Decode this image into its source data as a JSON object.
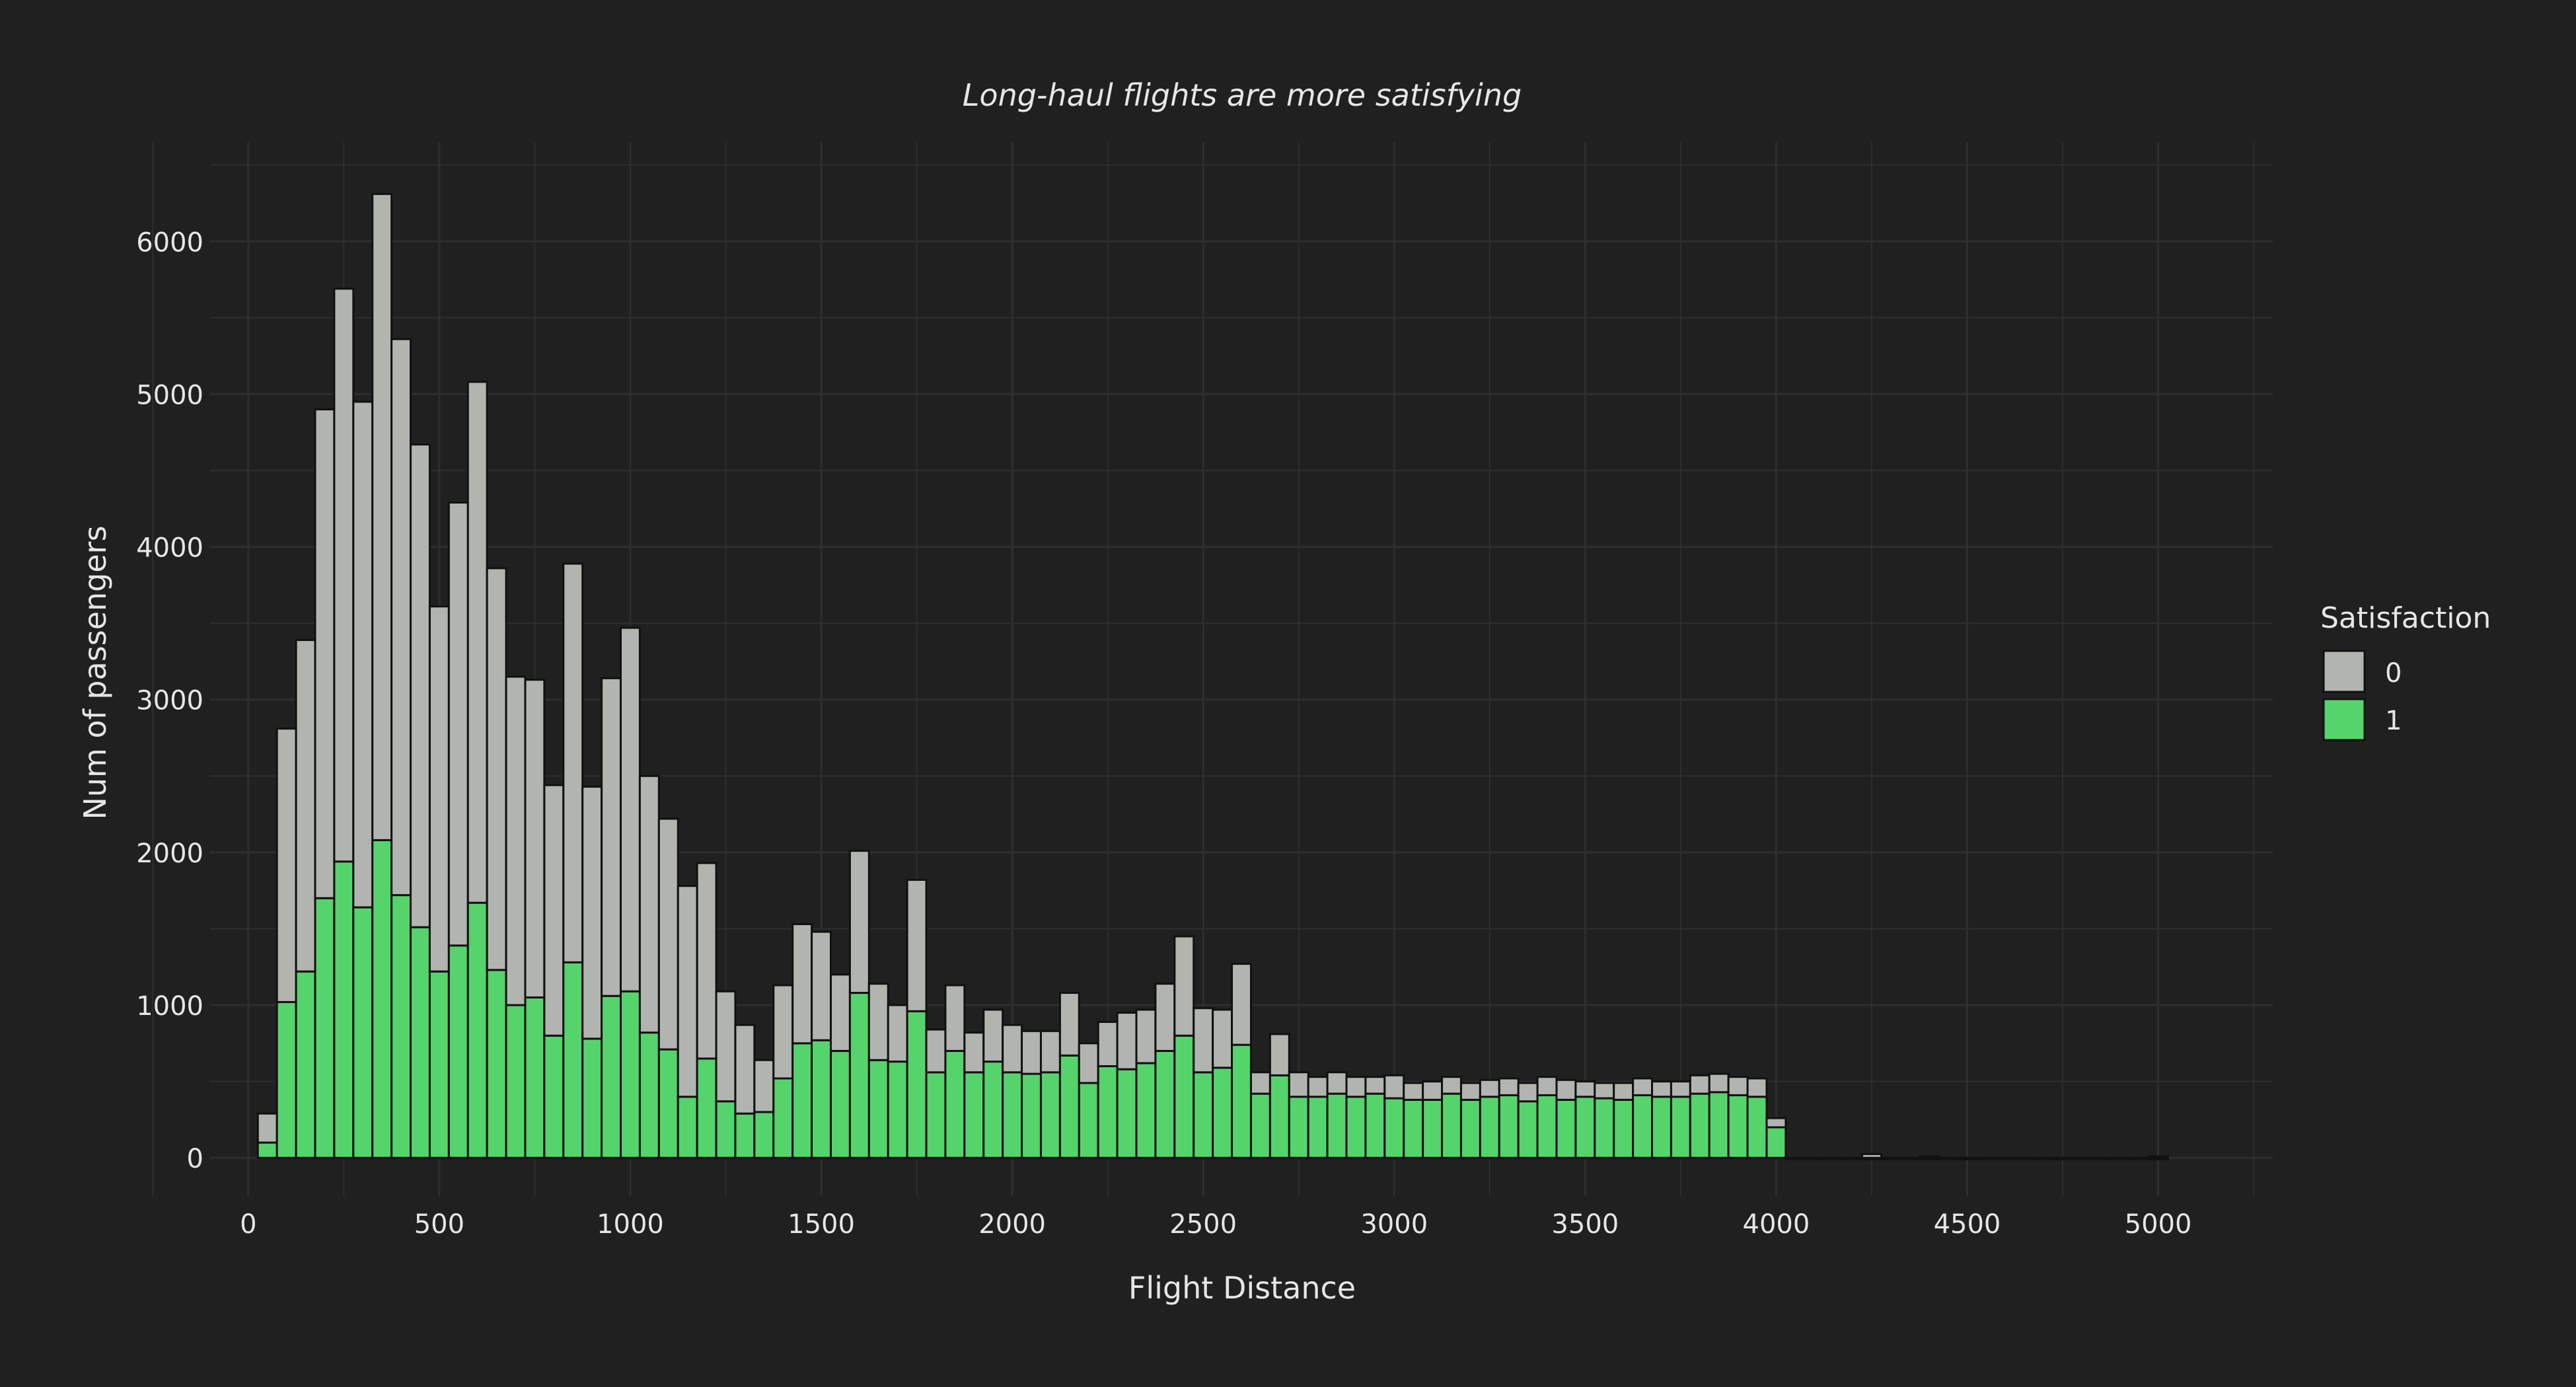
{
  "chart_data": {
    "type": "bar",
    "stacked": true,
    "title": "Long-haul flights are more satisfying",
    "xlabel": "Flight Distance",
    "ylabel": "Num of passengers",
    "xlim": [
      -100,
      5300
    ],
    "ylim": [
      -250,
      6650
    ],
    "x_ticks": [
      0,
      500,
      1000,
      1500,
      2000,
      2500,
      3000,
      3500,
      4000,
      4500,
      5000
    ],
    "y_ticks": [
      0,
      1000,
      2000,
      3000,
      4000,
      5000,
      6000
    ],
    "bin_width": 50,
    "grid": true,
    "legend": {
      "title": "Satisfaction",
      "placement": "right"
    },
    "colors": {
      "background": "#202020",
      "0": "#b2b5af",
      "1": "#55d46b",
      "outline": "#111111",
      "text": "#e6e6e6",
      "grid": "#2e2e2e"
    },
    "x": [
      50,
      100,
      150,
      200,
      250,
      300,
      350,
      400,
      450,
      500,
      550,
      600,
      650,
      700,
      750,
      800,
      850,
      900,
      950,
      1000,
      1050,
      1100,
      1150,
      1200,
      1250,
      1300,
      1350,
      1400,
      1450,
      1500,
      1550,
      1600,
      1650,
      1700,
      1750,
      1800,
      1850,
      1900,
      1950,
      2000,
      2050,
      2100,
      2150,
      2200,
      2250,
      2300,
      2350,
      2400,
      2450,
      2500,
      2550,
      2600,
      2650,
      2700,
      2750,
      2800,
      2850,
      2900,
      2950,
      3000,
      3050,
      3100,
      3150,
      3200,
      3250,
      3300,
      3350,
      3400,
      3450,
      3500,
      3550,
      3600,
      3650,
      3700,
      3750,
      3800,
      3850,
      3900,
      3950,
      4000,
      4050,
      4100,
      4150,
      4200,
      4250,
      4300,
      4350,
      4400,
      4450,
      4500,
      4550,
      4600,
      4650,
      4700,
      4750,
      4800,
      4850,
      4900,
      4950,
      5000
    ],
    "series": [
      {
        "name": "1",
        "values": [
          100,
          1020,
          1220,
          1700,
          1940,
          1640,
          2080,
          1720,
          1510,
          1220,
          1390,
          1670,
          1230,
          1000,
          1050,
          800,
          1280,
          780,
          1060,
          1090,
          820,
          710,
          400,
          650,
          370,
          290,
          300,
          520,
          750,
          770,
          700,
          1080,
          640,
          630,
          960,
          560,
          700,
          560,
          630,
          560,
          550,
          560,
          670,
          490,
          600,
          580,
          620,
          700,
          800,
          560,
          590,
          740,
          420,
          540,
          400,
          400,
          420,
          400,
          420,
          390,
          380,
          380,
          420,
          380,
          400,
          410,
          370,
          410,
          380,
          400,
          390,
          380,
          410,
          400,
          400,
          420,
          430,
          410,
          400,
          200,
          0,
          0,
          0,
          0,
          0,
          0,
          0,
          0,
          0,
          0,
          0,
          0,
          0,
          0,
          0,
          0,
          0,
          0,
          0,
          0
        ]
      },
      {
        "name": "0",
        "values": [
          190,
          1790,
          2170,
          3200,
          3750,
          3310,
          4230,
          3640,
          3160,
          2390,
          2900,
          3410,
          2630,
          2150,
          2080,
          1640,
          2610,
          1650,
          2080,
          2380,
          1680,
          1510,
          1380,
          1280,
          720,
          580,
          340,
          610,
          780,
          710,
          500,
          930,
          500,
          370,
          860,
          280,
          430,
          260,
          340,
          310,
          280,
          270,
          410,
          260,
          290,
          370,
          350,
          440,
          650,
          420,
          380,
          530,
          140,
          270,
          160,
          130,
          140,
          130,
          110,
          150,
          110,
          120,
          110,
          110,
          110,
          110,
          120,
          120,
          130,
          100,
          100,
          110,
          110,
          100,
          100,
          120,
          120,
          120,
          120,
          60,
          0,
          0,
          0,
          0,
          25,
          0,
          0,
          10,
          0,
          0,
          0,
          0,
          0,
          0,
          0,
          0,
          0,
          0,
          0,
          10
        ]
      }
    ]
  }
}
